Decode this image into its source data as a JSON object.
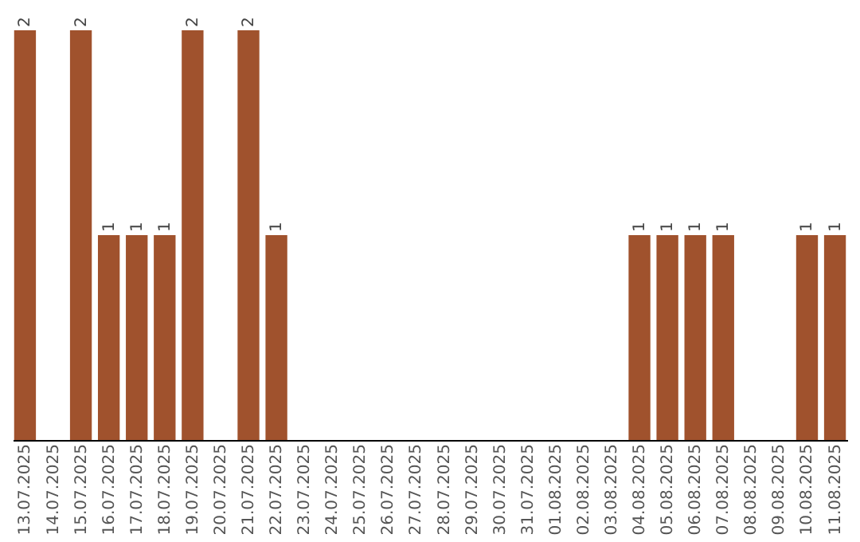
{
  "chart_data": {
    "type": "bar",
    "categories": [
      "13.07.2025",
      "14.07.2025",
      "15.07.2025",
      "16.07.2025",
      "17.07.2025",
      "18.07.2025",
      "19.07.2025",
      "20.07.2025",
      "21.07.2025",
      "22.07.2025",
      "23.07.2025",
      "24.07.2025",
      "25.07.2025",
      "26.07.2025",
      "27.07.2025",
      "28.07.2025",
      "29.07.2025",
      "30.07.2025",
      "31.07.2025",
      "01.08.2025",
      "02.08.2025",
      "03.08.2025",
      "04.08.2025",
      "05.08.2025",
      "06.08.2025",
      "07.08.2025",
      "08.08.2025",
      "09.08.2025",
      "10.08.2025",
      "11.08.2025"
    ],
    "values": [
      2,
      0,
      2,
      1,
      1,
      1,
      2,
      0,
      2,
      1,
      0,
      0,
      0,
      0,
      0,
      0,
      0,
      0,
      0,
      0,
      0,
      0,
      1,
      1,
      1,
      1,
      0,
      0,
      1,
      1
    ],
    "value_labels": [
      "2",
      null,
      "2",
      "1",
      "1",
      "1",
      "2",
      null,
      "2",
      "1",
      null,
      null,
      null,
      null,
      null,
      null,
      null,
      null,
      null,
      null,
      null,
      null,
      "1",
      "1",
      "1",
      "1",
      null,
      null,
      "1",
      "1"
    ],
    "color": "#a0522d",
    "grid": false
  }
}
